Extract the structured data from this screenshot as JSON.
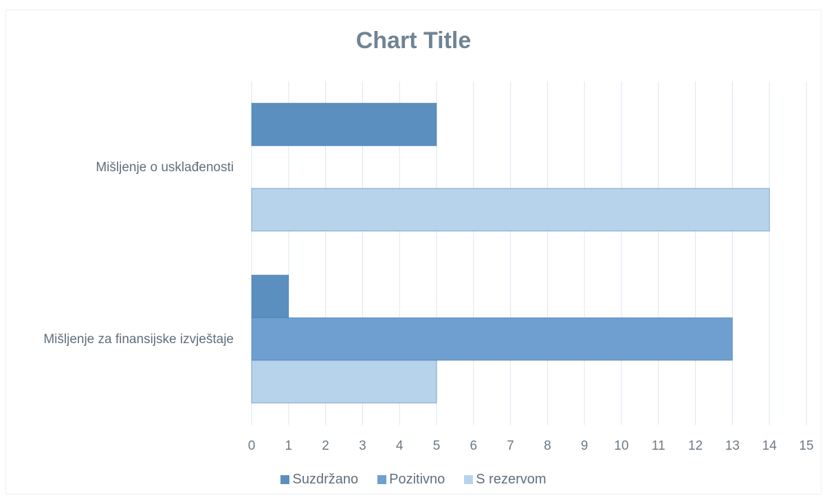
{
  "chart_data": {
    "type": "bar",
    "orientation": "horizontal",
    "title": "Chart Title",
    "categories": [
      "Mišljenje za finansijske izvještaje",
      "Mišljenje o usklađenosti"
    ],
    "series": [
      {
        "name": "Suzdržano",
        "values": [
          1,
          5
        ],
        "color": "#5b8fc0"
      },
      {
        "name": "Pozitivno",
        "values": [
          13,
          0
        ],
        "color": "#6e9fd0"
      },
      {
        "name": "S rezervom",
        "values": [
          5,
          14
        ],
        "color": "#b7d3ec"
      }
    ],
    "xlim": [
      0,
      15
    ],
    "xticks": [
      "0",
      "1",
      "2",
      "3",
      "4",
      "5",
      "6",
      "7",
      "8",
      "9",
      "10",
      "11",
      "12",
      "13",
      "14",
      "15"
    ],
    "grid": true,
    "legend_position": "bottom"
  }
}
